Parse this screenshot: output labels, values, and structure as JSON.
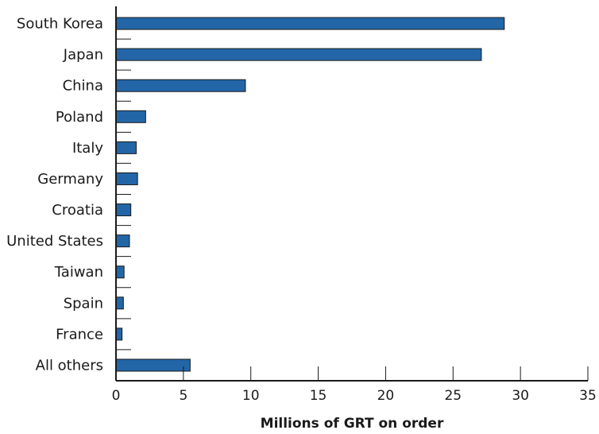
{
  "chart_data": {
    "type": "bar",
    "orientation": "horizontal",
    "categories": [
      "South Korea",
      "Japan",
      "China",
      "Poland",
      "Italy",
      "Germany",
      "Croatia",
      "United States",
      "Taiwan",
      "Spain",
      "France",
      "All others"
    ],
    "values": [
      28.8,
      27.1,
      9.6,
      2.2,
      1.5,
      1.6,
      1.1,
      1.0,
      0.6,
      0.55,
      0.45,
      5.5
    ],
    "xlabel": "Millions of GRT on order",
    "ylabel": "",
    "xlim": [
      0,
      35
    ],
    "xticks": [
      0,
      5,
      10,
      15,
      20,
      25,
      30,
      35
    ],
    "xtick_labels": [
      "0",
      "5",
      "10",
      "15",
      "20",
      "25",
      "30",
      "35"
    ],
    "grid": false,
    "bar_color": "#2266a8",
    "bar_edge_color": "#1a1a1a"
  }
}
